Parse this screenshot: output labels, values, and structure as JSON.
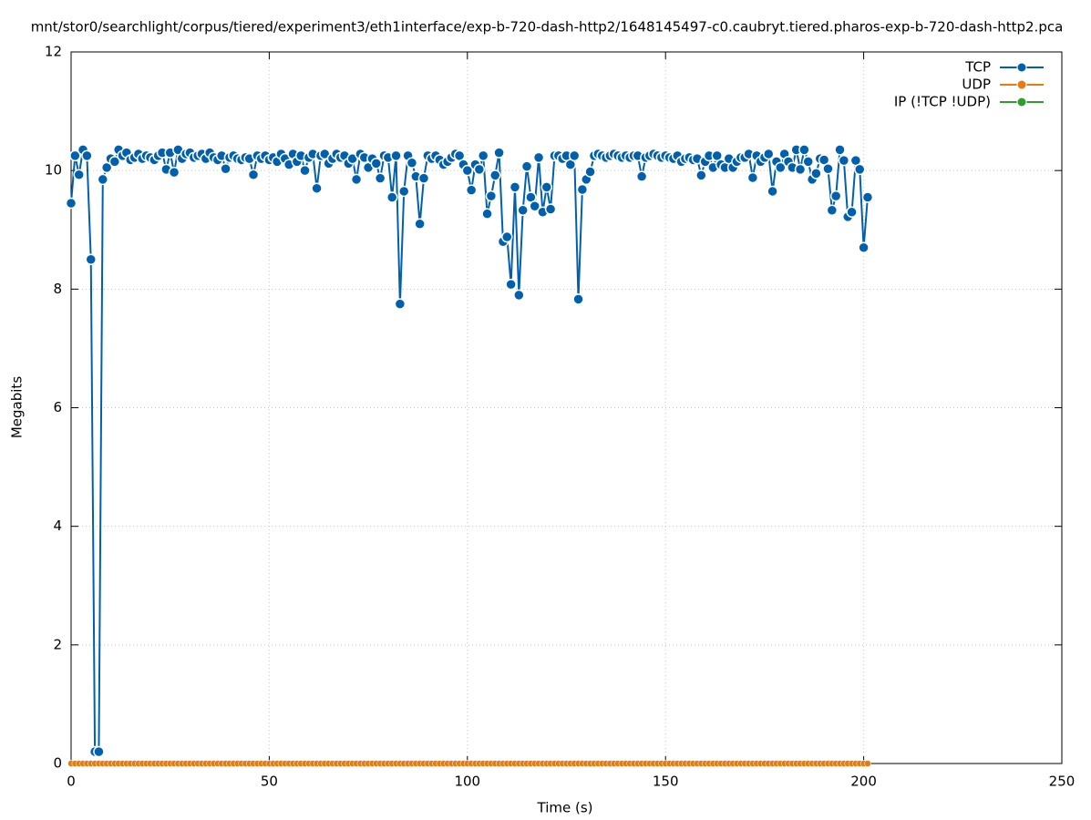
{
  "chart_data": {
    "type": "line",
    "title": "mnt/stor0/searchlight/corpus/tiered/experiment3/eth1interface/exp-b-720-dash-http2/1648145497-c0.caubryt.tiered.pharos-exp-b-720-dash-http2.pca",
    "xlabel": "Time (s)",
    "ylabel": "Megabits",
    "xlim": [
      0,
      250
    ],
    "xticks": [
      0,
      50,
      100,
      150,
      200,
      250
    ],
    "ylim": [
      0,
      12
    ],
    "yticks": [
      0,
      2,
      4,
      6,
      8,
      10,
      12
    ],
    "grid": true,
    "legend": "top-right",
    "x": [
      0,
      1,
      2,
      3,
      4,
      5,
      6,
      7,
      8,
      9,
      10,
      11,
      12,
      13,
      14,
      15,
      16,
      17,
      18,
      19,
      20,
      21,
      22,
      23,
      24,
      25,
      26,
      27,
      28,
      29,
      30,
      31,
      32,
      33,
      34,
      35,
      36,
      37,
      38,
      39,
      40,
      41,
      42,
      43,
      44,
      45,
      46,
      47,
      48,
      49,
      50,
      51,
      52,
      53,
      54,
      55,
      56,
      57,
      58,
      59,
      60,
      61,
      62,
      63,
      64,
      65,
      66,
      67,
      68,
      69,
      70,
      71,
      72,
      73,
      74,
      75,
      76,
      77,
      78,
      79,
      80,
      81,
      82,
      83,
      84,
      85,
      86,
      87,
      88,
      89,
      90,
      91,
      92,
      93,
      94,
      95,
      96,
      97,
      98,
      99,
      100,
      101,
      102,
      103,
      104,
      105,
      106,
      107,
      108,
      109,
      110,
      111,
      112,
      113,
      114,
      115,
      116,
      117,
      118,
      119,
      120,
      121,
      122,
      123,
      124,
      125,
      126,
      127,
      128,
      129,
      130,
      131,
      132,
      133,
      134,
      135,
      136,
      137,
      138,
      139,
      140,
      141,
      142,
      143,
      144,
      145,
      146,
      147,
      148,
      149,
      150,
      151,
      152,
      153,
      154,
      155,
      156,
      157,
      158,
      159,
      160,
      161,
      162,
      163,
      164,
      165,
      166,
      167,
      168,
      169,
      170,
      171,
      172,
      173,
      174,
      175,
      176,
      177,
      178,
      179,
      180,
      181,
      182,
      183,
      184,
      185,
      186,
      187,
      188,
      189,
      190,
      191,
      192,
      193,
      194,
      195,
      196,
      197,
      198,
      199,
      200,
      201
    ],
    "series": [
      {
        "name": "TCP",
        "color": "#0060ad",
        "values": [
          9.45,
          10.25,
          9.93,
          10.35,
          10.25,
          8.5,
          0.2,
          0.2,
          9.85,
          10.05,
          10.2,
          10.15,
          10.35,
          10.25,
          10.3,
          10.18,
          10.22,
          10.28,
          10.2,
          10.25,
          10.22,
          10.18,
          10.25,
          10.3,
          10.02,
          10.3,
          9.97,
          10.35,
          10.2,
          10.28,
          10.3,
          10.22,
          10.25,
          10.28,
          10.2,
          10.3,
          10.22,
          10.18,
          10.25,
          10.03,
          10.22,
          10.25,
          10.2,
          10.18,
          10.22,
          10.2,
          9.93,
          10.25,
          10.2,
          10.25,
          10.18,
          10.22,
          10.15,
          10.28,
          10.2,
          10.1,
          10.28,
          10.15,
          10.25,
          10.0,
          10.22,
          10.28,
          9.7,
          10.25,
          10.28,
          10.12,
          10.2,
          10.28,
          10.22,
          10.25,
          10.12,
          10.2,
          9.85,
          10.28,
          10.22,
          10.05,
          10.2,
          10.12,
          9.87,
          10.25,
          10.22,
          9.55,
          10.25,
          7.75,
          9.65,
          10.25,
          10.13,
          9.9,
          9.1,
          9.87,
          10.25,
          10.2,
          10.25,
          10.18,
          10.1,
          10.15,
          10.22,
          10.28,
          10.25,
          10.1,
          10.0,
          9.67,
          10.1,
          10.02,
          10.25,
          9.27,
          9.57,
          9.92,
          10.3,
          8.8,
          8.88,
          8.08,
          9.72,
          7.9,
          9.33,
          10.07,
          9.55,
          9.4,
          10.22,
          9.3,
          9.72,
          9.35,
          10.25,
          10.25,
          10.2,
          10.25,
          10.1,
          10.25,
          7.83,
          9.68,
          9.85,
          9.98,
          10.25,
          10.28,
          10.25,
          10.22,
          10.25,
          10.28,
          10.25,
          10.22,
          10.25,
          10.22,
          10.25,
          10.25,
          9.9,
          10.22,
          10.25,
          10.28,
          10.25,
          10.22,
          10.25,
          10.22,
          10.2,
          10.25,
          10.15,
          10.2,
          10.22,
          10.18,
          10.2,
          9.92,
          10.15,
          10.25,
          10.05,
          10.25,
          10.1,
          10.05,
          10.2,
          10.05,
          10.15,
          10.22,
          10.22,
          10.28,
          9.88,
          10.25,
          10.15,
          10.22,
          10.28,
          9.65,
          10.15,
          10.05,
          10.28,
          10.15,
          10.05,
          10.35,
          10.02,
          10.35,
          10.15,
          9.85,
          9.95,
          10.2,
          10.18,
          10.03,
          9.33,
          9.57,
          10.35,
          10.17,
          9.22,
          9.3,
          10.17,
          10.02,
          8.7,
          9.55
        ]
      },
      {
        "name": "UDP",
        "color": "#e87b10",
        "values": [
          0,
          0,
          0,
          0,
          0,
          0,
          0,
          0,
          0,
          0,
          0,
          0,
          0,
          0,
          0,
          0,
          0,
          0,
          0,
          0,
          0,
          0,
          0,
          0,
          0,
          0,
          0,
          0,
          0,
          0,
          0,
          0,
          0,
          0,
          0,
          0,
          0,
          0,
          0,
          0,
          0,
          0,
          0,
          0,
          0,
          0,
          0,
          0,
          0,
          0,
          0,
          0,
          0,
          0,
          0,
          0,
          0,
          0,
          0,
          0,
          0,
          0,
          0,
          0,
          0,
          0,
          0,
          0,
          0,
          0,
          0,
          0,
          0,
          0,
          0,
          0,
          0,
          0,
          0,
          0,
          0,
          0,
          0,
          0,
          0,
          0,
          0,
          0,
          0,
          0,
          0,
          0,
          0,
          0,
          0,
          0,
          0,
          0,
          0,
          0,
          0,
          0,
          0,
          0,
          0,
          0,
          0,
          0,
          0,
          0,
          0,
          0,
          0,
          0,
          0,
          0,
          0,
          0,
          0,
          0,
          0,
          0,
          0,
          0,
          0,
          0,
          0,
          0,
          0,
          0,
          0,
          0,
          0,
          0,
          0,
          0,
          0,
          0,
          0,
          0,
          0,
          0,
          0,
          0,
          0,
          0,
          0,
          0,
          0,
          0,
          0,
          0,
          0,
          0,
          0,
          0,
          0,
          0,
          0,
          0,
          0,
          0,
          0,
          0,
          0,
          0,
          0,
          0,
          0,
          0,
          0,
          0,
          0,
          0,
          0,
          0,
          0,
          0,
          0,
          0,
          0,
          0,
          0,
          0,
          0,
          0,
          0,
          0,
          0,
          0,
          0,
          0,
          0,
          0,
          0,
          0,
          0,
          0,
          0,
          0,
          0,
          0
        ]
      },
      {
        "name": "IP (!TCP  !UDP)",
        "color": "#2ca02c",
        "values": [
          0,
          0,
          0,
          0,
          0,
          0,
          0,
          0,
          0,
          0,
          0,
          0,
          0,
          0,
          0,
          0,
          0,
          0,
          0,
          0,
          0,
          0,
          0,
          0,
          0,
          0,
          0,
          0,
          0,
          0,
          0,
          0,
          0,
          0,
          0,
          0,
          0,
          0,
          0,
          0,
          0,
          0,
          0,
          0,
          0,
          0,
          0,
          0,
          0,
          0,
          0,
          0,
          0,
          0,
          0,
          0,
          0,
          0,
          0,
          0,
          0,
          0,
          0,
          0,
          0,
          0,
          0,
          0,
          0,
          0,
          0,
          0,
          0,
          0,
          0,
          0,
          0,
          0,
          0,
          0,
          0,
          0,
          0,
          0,
          0,
          0,
          0,
          0,
          0,
          0,
          0,
          0,
          0,
          0,
          0,
          0,
          0,
          0,
          0,
          0,
          0,
          0,
          0,
          0,
          0,
          0,
          0,
          0,
          0,
          0,
          0,
          0,
          0,
          0,
          0,
          0,
          0,
          0,
          0,
          0,
          0,
          0,
          0,
          0,
          0,
          0,
          0,
          0,
          0,
          0,
          0,
          0,
          0,
          0,
          0,
          0,
          0,
          0,
          0,
          0,
          0,
          0,
          0,
          0,
          0,
          0,
          0,
          0,
          0,
          0,
          0,
          0,
          0,
          0,
          0,
          0,
          0,
          0,
          0,
          0,
          0,
          0,
          0,
          0,
          0,
          0,
          0,
          0,
          0,
          0,
          0,
          0,
          0,
          0,
          0,
          0,
          0,
          0,
          0,
          0,
          0,
          0,
          0,
          0,
          0,
          0,
          0,
          0,
          0,
          0,
          0,
          0,
          0,
          0,
          0,
          0,
          0,
          0,
          0,
          0,
          0,
          0
        ]
      }
    ]
  }
}
